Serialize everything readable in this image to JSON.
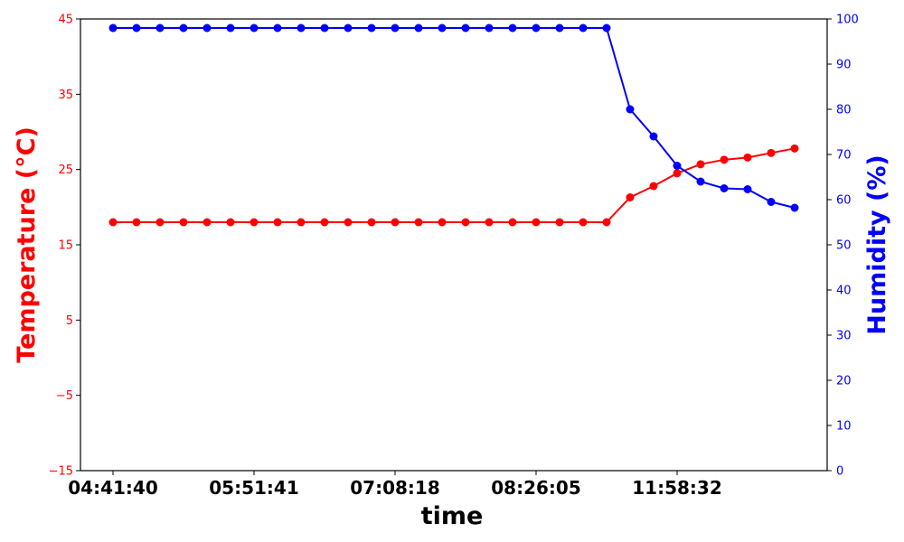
{
  "chart_data": {
    "type": "line",
    "xlabel": "time",
    "x_tick_labels": [
      "04:41:40",
      "05:51:41",
      "07:08:18",
      "08:26:05",
      "11:58:32"
    ],
    "x_tick_indices": [
      0,
      6,
      12,
      18,
      24
    ],
    "point_count": 30,
    "grid": false,
    "colors": {
      "temperature": "#ff0000",
      "humidity": "#0000ff",
      "axis": "#000000"
    },
    "y_left": {
      "label": "Temperature (°C)",
      "ylim": [
        -15,
        45
      ],
      "ticks": [
        -15,
        -5,
        5,
        15,
        25,
        35,
        45
      ],
      "tick_labels": [
        "−15",
        "−5",
        "5",
        "15",
        "25",
        "35",
        "45"
      ]
    },
    "y_right": {
      "label": "Humidity (%)",
      "ylim": [
        0,
        100
      ],
      "ticks": [
        0,
        10,
        20,
        30,
        40,
        50,
        60,
        70,
        80,
        90,
        100
      ],
      "tick_labels": [
        "0",
        "10",
        "20",
        "30",
        "40",
        "50",
        "60",
        "70",
        "80",
        "90",
        "100"
      ]
    },
    "series": [
      {
        "axis": "left",
        "color": "#ff0000",
        "values": [
          18,
          18,
          18,
          18,
          18,
          18,
          18,
          18,
          18,
          18,
          18,
          18,
          18,
          18,
          18,
          18,
          18,
          18,
          18,
          18,
          18,
          18,
          21.3,
          22.8,
          24.5,
          25.7,
          26.3,
          26.6,
          27.2,
          27.8
        ]
      },
      {
        "axis": "right",
        "color": "#0000ff",
        "values": [
          98,
          98,
          98,
          98,
          98,
          98,
          98,
          98,
          98,
          98,
          98,
          98,
          98,
          98,
          98,
          98,
          98,
          98,
          98,
          98,
          98,
          98,
          80,
          74,
          67.5,
          64,
          62.5,
          62.3,
          59.5,
          58.2
        ]
      }
    ]
  }
}
